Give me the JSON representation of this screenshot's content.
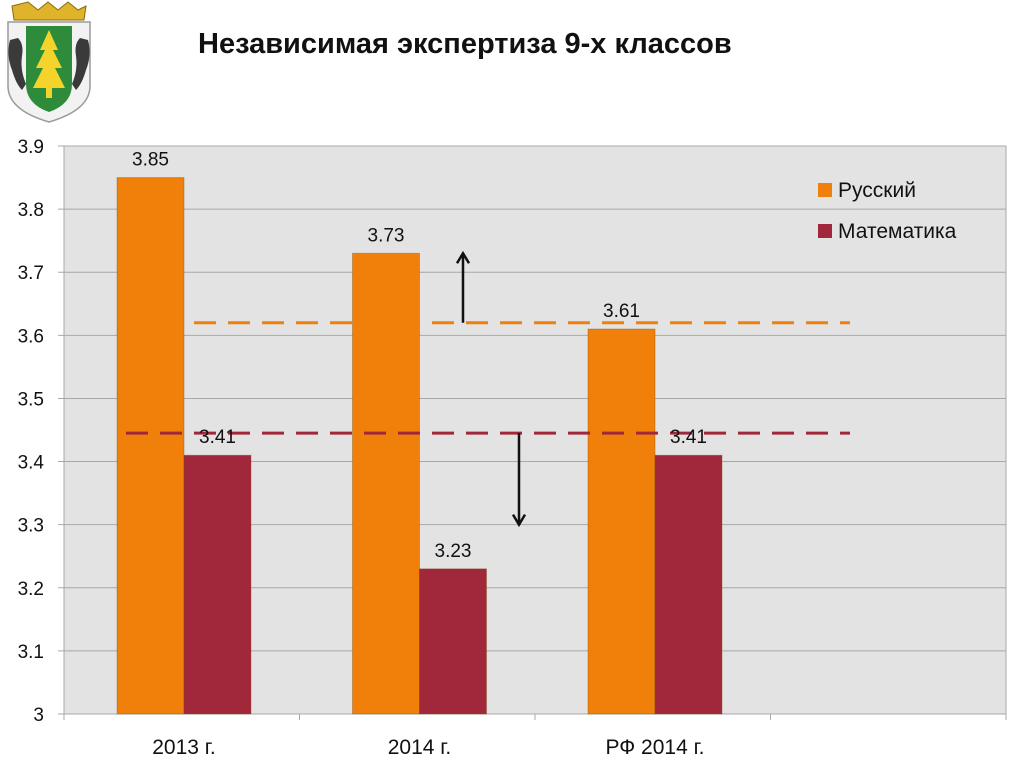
{
  "header": {
    "title": "Независимая экспертиза 9-х классов"
  },
  "emblem": {
    "icon": "coat-of-arms-icon",
    "colors": {
      "shield": "#f2f2f2",
      "tree": "#f4d42a",
      "field": "#2e8b3a",
      "crown": "#e0b42a",
      "bear": "#3a3a3a"
    }
  },
  "chart_data": {
    "type": "bar",
    "title": "Независимая экспертиза 9-х классов",
    "categories": [
      "2013 г.",
      "2014 г.",
      "РФ 2014 г."
    ],
    "series": [
      {
        "name": "Русский",
        "values": [
          3.85,
          3.73,
          3.61
        ],
        "color": "#f0800a"
      },
      {
        "name": "Математика",
        "values": [
          3.41,
          3.23,
          3.41
        ],
        "color": "#a0283a"
      }
    ],
    "data_labels": [
      [
        "3.85",
        "3.73",
        "3.61"
      ],
      [
        "3.41",
        "3.23",
        "3.41"
      ]
    ],
    "yticks": [
      "3",
      "3.1",
      "3.2",
      "3.3",
      "3.4",
      "3.5",
      "3.6",
      "3.7",
      "3.8",
      "3.9"
    ],
    "ylim": [
      3,
      3.9
    ],
    "grid": true,
    "legend": "top-right",
    "reference_lines": [
      {
        "series": "Русский",
        "value": 3.62,
        "style": "dashed",
        "color": "#f0800a"
      },
      {
        "series": "Математика",
        "value": 3.445,
        "style": "dashed",
        "color": "#a0283a"
      }
    ],
    "arrows": [
      {
        "direction": "up",
        "between": "2013 г. / 2014 г.",
        "from": 3.62,
        "to": 3.73
      },
      {
        "direction": "down",
        "between": "2014 г.",
        "from": 3.445,
        "to": 3.3
      }
    ],
    "colors": {
      "plot_bg": "#e3e3e3",
      "grid": "#a8a8a8"
    }
  }
}
